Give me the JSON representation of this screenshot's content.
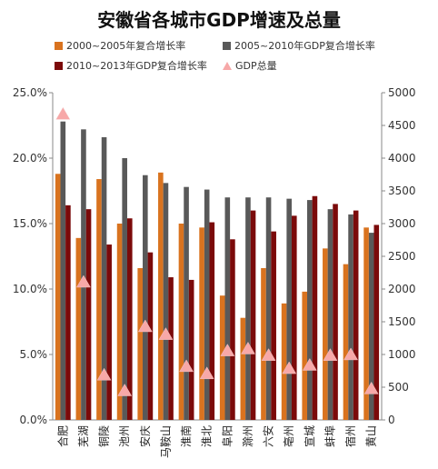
{
  "chart_data": {
    "type": "bar",
    "title": "安徽省各城市GDP增速及总量",
    "categories": [
      "合肥",
      "芜湖",
      "铜陵",
      "池州",
      "安庆",
      "马鞍山",
      "淮南",
      "淮北",
      "阜阳",
      "滁州",
      "六安",
      "亳州",
      "宣城",
      "蚌埠",
      "宿州",
      "黄山"
    ],
    "series": [
      {
        "name": "2000~2005年复合增长率",
        "axis": "left",
        "color": "#d9731f",
        "values": [
          18.8,
          13.9,
          18.4,
          15.0,
          11.6,
          18.9,
          15.0,
          14.7,
          9.5,
          7.8,
          11.6,
          8.9,
          9.8,
          13.1,
          11.9,
          14.7
        ]
      },
      {
        "name": "2005~2010年GDP复合增长率",
        "axis": "left",
        "color": "#595959",
        "values": [
          22.8,
          22.2,
          21.6,
          20.0,
          18.7,
          18.1,
          17.8,
          17.6,
          17.0,
          17.0,
          17.0,
          16.9,
          16.8,
          16.1,
          15.7,
          14.3
        ]
      },
      {
        "name": "2010~2013年GDP复合增长率",
        "axis": "left",
        "color": "#7b0a0a",
        "values": [
          16.4,
          16.1,
          13.4,
          15.4,
          12.8,
          10.9,
          10.7,
          15.1,
          13.8,
          16.0,
          14.4,
          15.6,
          17.1,
          16.5,
          16.0,
          14.9
        ]
      },
      {
        "name": "GDP总量",
        "axis": "right",
        "type": "scatter",
        "marker": "triangle",
        "color": "#f7a8a8",
        "values": [
          4665,
          2100,
          680,
          440,
          1420,
          1300,
          810,
          700,
          1050,
          1080,
          980,
          780,
          830,
          980,
          990,
          470
        ]
      }
    ],
    "y_left": {
      "ylim": [
        0,
        25
      ],
      "ticks": [
        "0.0%",
        "5.0%",
        "10.0%",
        "15.0%",
        "20.0%",
        "25.0%"
      ]
    },
    "y_right": {
      "ylim": [
        0,
        5000
      ],
      "ticks": [
        "0",
        "500",
        "1000",
        "1500",
        "2000",
        "2500",
        "3000",
        "3500",
        "4000",
        "4500",
        "5000"
      ]
    },
    "grid": false,
    "legend_position": "top"
  }
}
